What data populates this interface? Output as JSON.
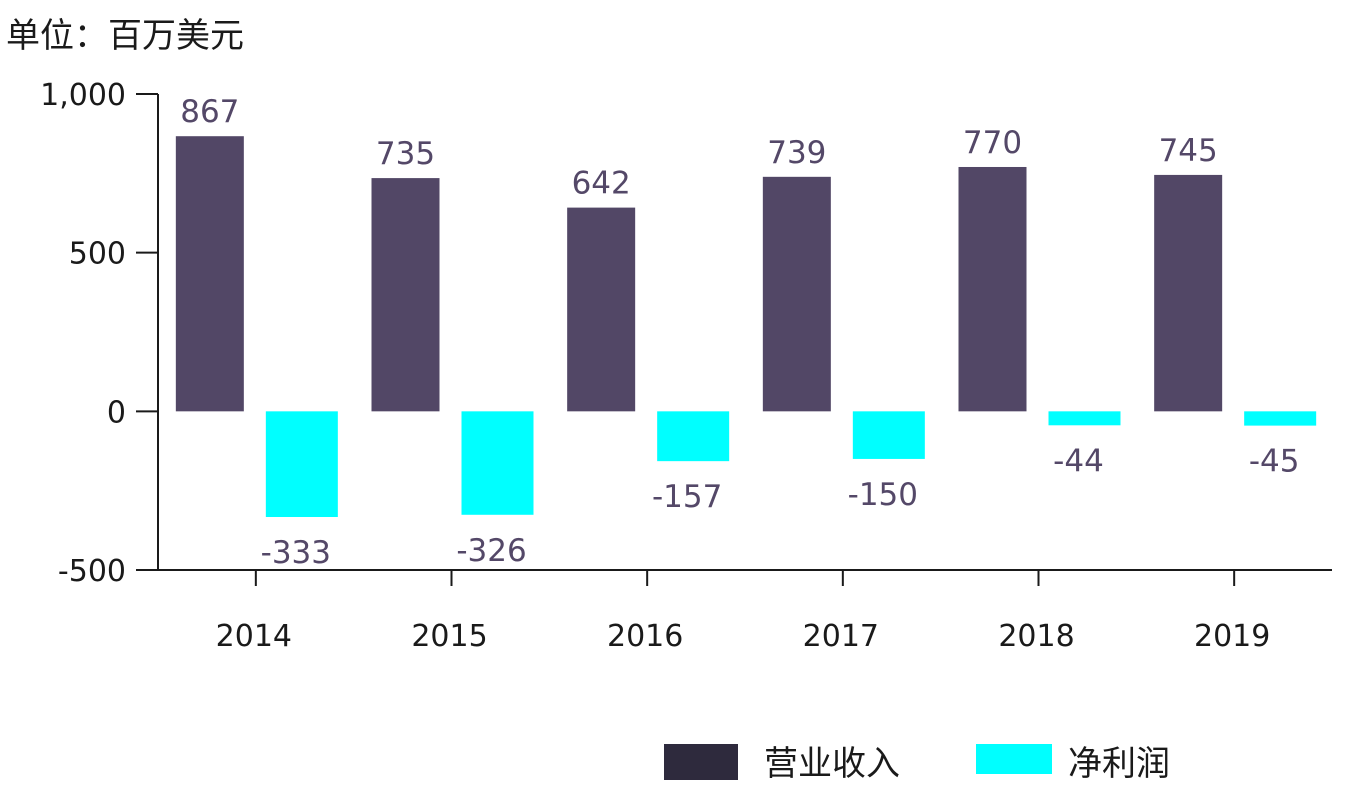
{
  "unit_label": "单位：百万美元",
  "colors": {
    "revenue": "#524766",
    "net_profit": "#00ffff",
    "legend_revenue": "#2e2a3d",
    "axis": "#1a1a1a"
  },
  "chart_data": {
    "type": "bar",
    "categories": [
      "2014",
      "2015",
      "2016",
      "2017",
      "2018",
      "2019"
    ],
    "series": [
      {
        "name": "营业收入",
        "values": [
          867,
          735,
          642,
          739,
          770,
          745
        ]
      },
      {
        "name": "净利润",
        "values": [
          -333,
          -326,
          -157,
          -150,
          -44,
          -45
        ]
      }
    ],
    "ylim": [
      -500,
      1000
    ],
    "yticks": [
      -500,
      0,
      500,
      1000
    ],
    "ytick_labels": [
      "-500",
      "0",
      "500",
      "1,000"
    ],
    "data_labels": [
      [
        "867",
        "735",
        "642",
        "739",
        "770",
        "745"
      ],
      [
        "-333",
        "-326",
        "-157",
        "-150",
        "-44",
        "-45"
      ]
    ],
    "title": "",
    "xlabel": "",
    "ylabel": "",
    "grid": false,
    "legend_position": "bottom-right"
  }
}
